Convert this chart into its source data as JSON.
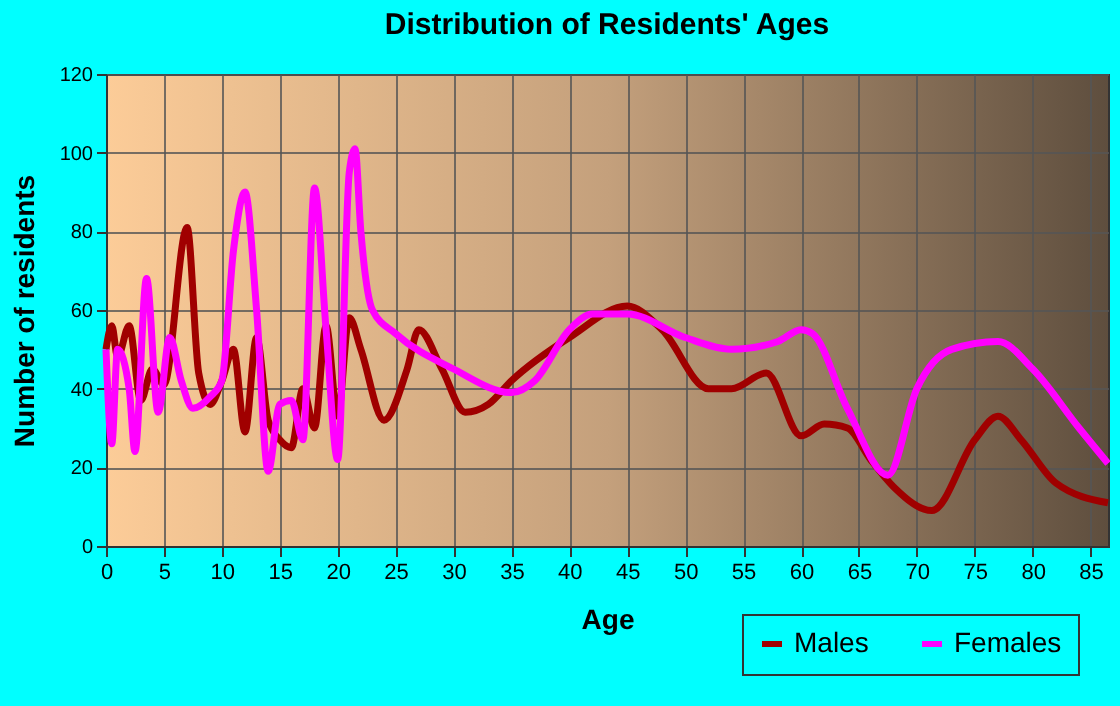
{
  "chart_data": {
    "type": "line",
    "title": "Distribution of Residents' Ages",
    "xlabel": "Age",
    "ylabel": "Number of residents",
    "xlim": [
      0,
      86.5
    ],
    "xticks": [
      0,
      5,
      10,
      15,
      20,
      25,
      30,
      35,
      40,
      45,
      50,
      55,
      60,
      65,
      70,
      75,
      80,
      85
    ],
    "ylim": [
      0,
      120
    ],
    "yticks": [
      0,
      20,
      40,
      60,
      80,
      100,
      120
    ],
    "grid": true,
    "legend": "bottom right",
    "series": [
      {
        "name": "Males",
        "color": "#a00000",
        "x": [
          0,
          0.5,
          1,
          2,
          3,
          4,
          5,
          7,
          8,
          9,
          10,
          11,
          12,
          13,
          14,
          15,
          16,
          17,
          18,
          19,
          20,
          21,
          22,
          24,
          26,
          27,
          29,
          31,
          33,
          35,
          40,
          45,
          48,
          52,
          54,
          57,
          60,
          62,
          64,
          66,
          68,
          71.3,
          75,
          77,
          79,
          82,
          86.5
        ],
        "values": [
          50,
          56,
          48,
          56,
          37,
          45,
          41,
          81,
          44,
          36,
          42,
          50,
          29,
          53,
          32,
          27,
          25,
          40,
          30,
          56,
          33,
          58,
          50,
          32,
          45,
          55,
          45,
          34,
          36,
          42,
          53,
          61,
          55,
          40,
          40,
          44,
          28,
          31,
          30,
          22,
          15,
          9,
          27,
          33,
          27,
          16,
          11
        ]
      },
      {
        "name": "Females",
        "color": "#ff00ff",
        "x": [
          0,
          0.5,
          1,
          2,
          2.5,
          3.5,
          4.5,
          5.5,
          6.5,
          7.5,
          9,
          10,
          11,
          12,
          13,
          14,
          15,
          16,
          17,
          18,
          19,
          20,
          21,
          21.5,
          22,
          23,
          25,
          30,
          35,
          37,
          40,
          42,
          45,
          50,
          54,
          58,
          60,
          61,
          64,
          67.5,
          70,
          73,
          77,
          80,
          84,
          86.5
        ],
        "values": [
          50,
          26,
          50,
          40,
          24,
          68,
          34,
          53,
          42,
          35,
          38,
          42,
          75,
          90,
          60,
          19,
          36,
          37,
          27,
          91,
          55,
          22,
          95,
          101,
          80,
          60,
          54,
          45,
          39,
          42,
          55,
          59,
          59,
          53,
          50,
          52,
          55,
          54,
          35,
          18,
          40,
          50,
          52,
          45,
          30,
          21
        ]
      }
    ]
  }
}
